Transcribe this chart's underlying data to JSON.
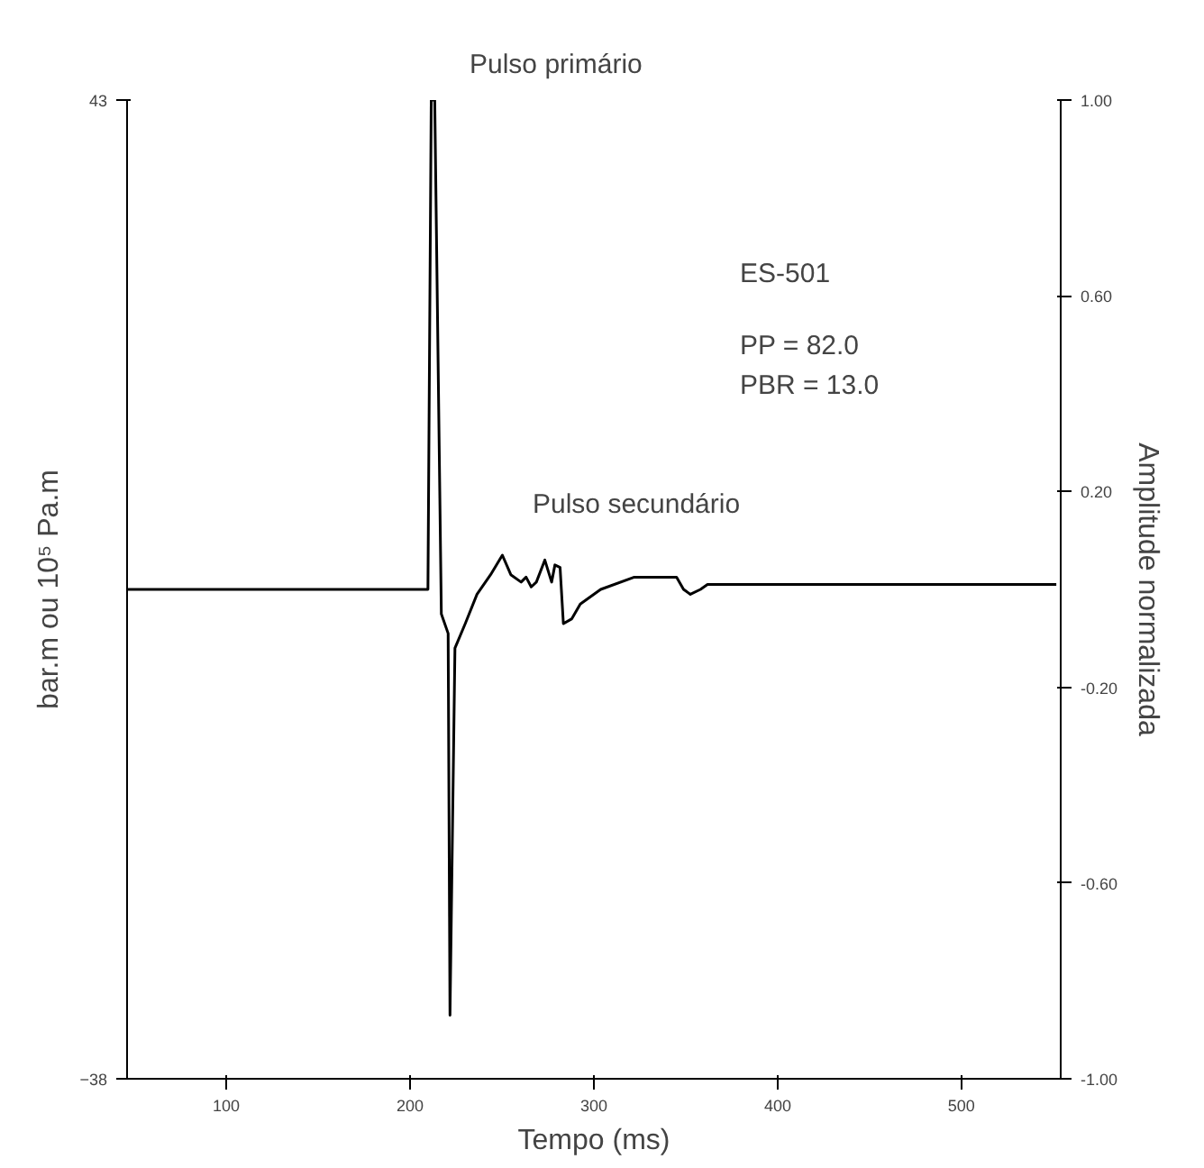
{
  "chart_data": {
    "type": "line",
    "xlabel": "Tempo (ms)",
    "ylabel": "bar.m ou 10⁵ Pa.m",
    "y2label": "Amplitude normalizada",
    "xlim": [
      46,
      554
    ],
    "xticks": [
      100,
      200,
      300,
      400,
      500
    ],
    "ylim": [
      -38,
      43
    ],
    "yticks": [
      43,
      -38
    ],
    "y2lim": [
      -1,
      1
    ],
    "y2ticks": [
      {
        "value": 1,
        "label": "1.00"
      },
      {
        "value": 0.6,
        "label": "0.60"
      },
      {
        "value": 0.2,
        "label": "0.20"
      },
      {
        "value": -0.2,
        "label": "-0.20"
      },
      {
        "value": -0.6,
        "label": "-0.60"
      },
      {
        "value": -1,
        "label": "-1.00"
      }
    ],
    "grid": false,
    "marker": "none",
    "line_style": "solid",
    "series": [
      {
        "color": "#000000",
        "axis": "y2",
        "x": [
          46.5,
          209.7,
          211.5,
          213.4,
          217,
          220.7,
          221.7,
          224.4,
          230,
          236.4,
          243.8,
          250.2,
          254.8,
          260.4,
          263.1,
          265.9,
          268.7,
          273.3,
          277,
          278.8,
          281.6,
          283.4,
          288,
          292.6,
          303.7,
          322,
          345,
          348.8,
          352.5,
          358,
          361.8,
          551.6
        ],
        "values": [
          0,
          0,
          1.0,
          1.0,
          -0.05,
          -0.09,
          -0.87,
          -0.12,
          -0.07,
          -0.01,
          0.03,
          0.07,
          0.03,
          0.015,
          0.025,
          0.005,
          0.015,
          0.06,
          0.015,
          0.05,
          0.045,
          -0.07,
          -0.06,
          -0.03,
          0,
          0.025,
          0.025,
          0,
          -0.01,
          0,
          0.01,
          0.01
        ]
      }
    ],
    "annotations": [
      "Pulso primário",
      "Pulso secundário",
      "ES-501",
      "PP  =  82.0",
      "PBR =  13.0"
    ]
  }
}
